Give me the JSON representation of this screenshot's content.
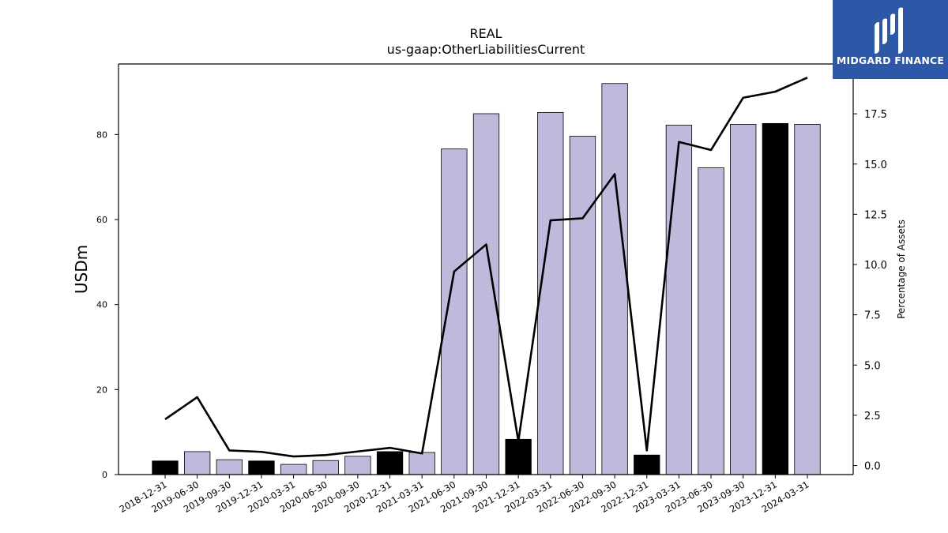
{
  "chart_data": {
    "type": "bar",
    "title": "REAL",
    "subtitle": "us-gaap:OtherLiabilitiesCurrent",
    "ylabel": "USDm",
    "y2label": "Percentage of Assets",
    "categories": [
      "2018-12-31",
      "2019-06-30",
      "2019-09-30",
      "2019-12-31",
      "2020-03-31",
      "2020-06-30",
      "2020-09-30",
      "2020-12-31",
      "2021-03-31",
      "2021-06-30",
      "2021-09-30",
      "2021-12-31",
      "2022-03-31",
      "2022-06-30",
      "2022-09-30",
      "2022-12-31",
      "2023-03-31",
      "2023-06-30",
      "2023-09-30",
      "2023-12-31",
      "2024-03-31"
    ],
    "series": [
      {
        "type": "bar",
        "values": [
          3.2,
          5.4,
          3.5,
          3.2,
          2.4,
          3.3,
          4.3,
          5.4,
          5.2,
          76.6,
          84.9,
          8.3,
          85.2,
          79.6,
          92.0,
          4.6,
          82.2,
          72.2,
          82.4,
          82.6,
          82.4
        ],
        "annual": [
          true,
          false,
          false,
          true,
          false,
          false,
          false,
          true,
          false,
          false,
          false,
          true,
          false,
          false,
          false,
          true,
          false,
          false,
          false,
          true,
          false
        ]
      },
      {
        "type": "line",
        "axis": "right",
        "values": [
          2.3,
          3.4,
          0.75,
          0.68,
          0.45,
          0.52,
          0.7,
          0.88,
          0.6,
          9.65,
          11.0,
          1.2,
          12.2,
          12.3,
          14.5,
          0.75,
          16.1,
          15.7,
          18.3,
          18.6,
          19.3
        ]
      }
    ],
    "ylim": [
      0,
      96.6
    ],
    "y2lim": [
      -0.45,
      19.98
    ],
    "yticks": [
      0,
      20,
      40,
      60,
      80
    ],
    "y2ticks": [
      0.0,
      2.5,
      5.0,
      7.5,
      10.0,
      12.5,
      15.0,
      17.5
    ],
    "colors": {
      "bar": "#bdbadb",
      "annual_bar": "#000000",
      "line": "#000000",
      "edge": "#000000"
    },
    "grid": false,
    "legend": "none"
  },
  "logo": {
    "text": "MIDGARD FINANCE",
    "color": "#2d58a8"
  }
}
